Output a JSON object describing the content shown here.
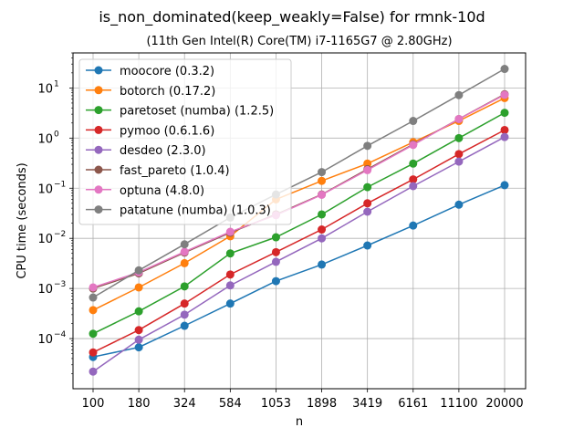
{
  "chart_data": {
    "type": "line",
    "title": "is_non_dominated(keep_weakly=False) for rmnk-10d",
    "subtitle": "(11th Gen Intel(R) Core(TM) i7-1165G7 @ 2.80GHz)",
    "xlabel": "n",
    "ylabel": "CPU time (seconds)",
    "x": [
      "100",
      "180",
      "324",
      "584",
      "1053",
      "1898",
      "3419",
      "6161",
      "11100",
      "20000"
    ],
    "yscale": "log",
    "ylim": [
      1e-05,
      50
    ],
    "y_ticks": [
      {
        "value": 0.0001,
        "base": "10",
        "exp": "−4"
      },
      {
        "value": 0.001,
        "base": "10",
        "exp": "−3"
      },
      {
        "value": 0.01,
        "base": "10",
        "exp": "−2"
      },
      {
        "value": 0.1,
        "base": "10",
        "exp": "−1"
      },
      {
        "value": 1,
        "base": "10",
        "exp": "0"
      },
      {
        "value": 10,
        "base": "10",
        "exp": "1"
      }
    ],
    "grid": true,
    "legend_position": "top-left",
    "series": [
      {
        "name": "moocore (0.3.2)",
        "color": "#1f77b4",
        "values": [
          4.3e-05,
          6.7e-05,
          0.00018,
          0.0005,
          0.0014,
          0.003,
          0.0072,
          0.018,
          0.047,
          0.115
        ]
      },
      {
        "name": "botorch (0.17.2)",
        "color": "#ff7f0e",
        "values": [
          0.00037,
          0.00105,
          0.0032,
          0.011,
          0.06,
          0.14,
          0.31,
          0.83,
          2.2,
          6.3
        ]
      },
      {
        "name": "paretoset (numba) (1.2.5)",
        "color": "#2ca02c",
        "values": [
          0.000125,
          0.00035,
          0.0011,
          0.005,
          0.0105,
          0.03,
          0.105,
          0.31,
          1.0,
          3.2
        ]
      },
      {
        "name": "pymoo (0.6.1.6)",
        "color": "#d62728",
        "values": [
          5.3e-05,
          0.000148,
          0.0005,
          0.0019,
          0.0053,
          0.015,
          0.05,
          0.15,
          0.48,
          1.45
        ]
      },
      {
        "name": "desdeo (2.3.0)",
        "color": "#9467bd",
        "values": [
          2.2e-05,
          9.5e-05,
          0.0003,
          0.00115,
          0.0034,
          0.01,
          0.034,
          0.11,
          0.34,
          1.05
        ]
      },
      {
        "name": "fast_pareto (1.0.4)",
        "color": "#8c564b",
        "values": [
          0.001,
          0.002,
          0.0052,
          0.013,
          0.03,
          0.075,
          0.24,
          0.75,
          2.4,
          7.5
        ]
      },
      {
        "name": "optuna (4.8.0)",
        "color": "#e377c2",
        "values": [
          0.00105,
          0.0021,
          0.0054,
          0.0135,
          0.029,
          0.074,
          0.23,
          0.73,
          2.4,
          7.3
        ]
      },
      {
        "name": "patatune (numba) (1.0.3)",
        "color": "#7f7f7f",
        "values": [
          0.00066,
          0.0023,
          0.0076,
          0.026,
          0.075,
          0.21,
          0.7,
          2.2,
          7.2,
          24
        ]
      }
    ]
  }
}
